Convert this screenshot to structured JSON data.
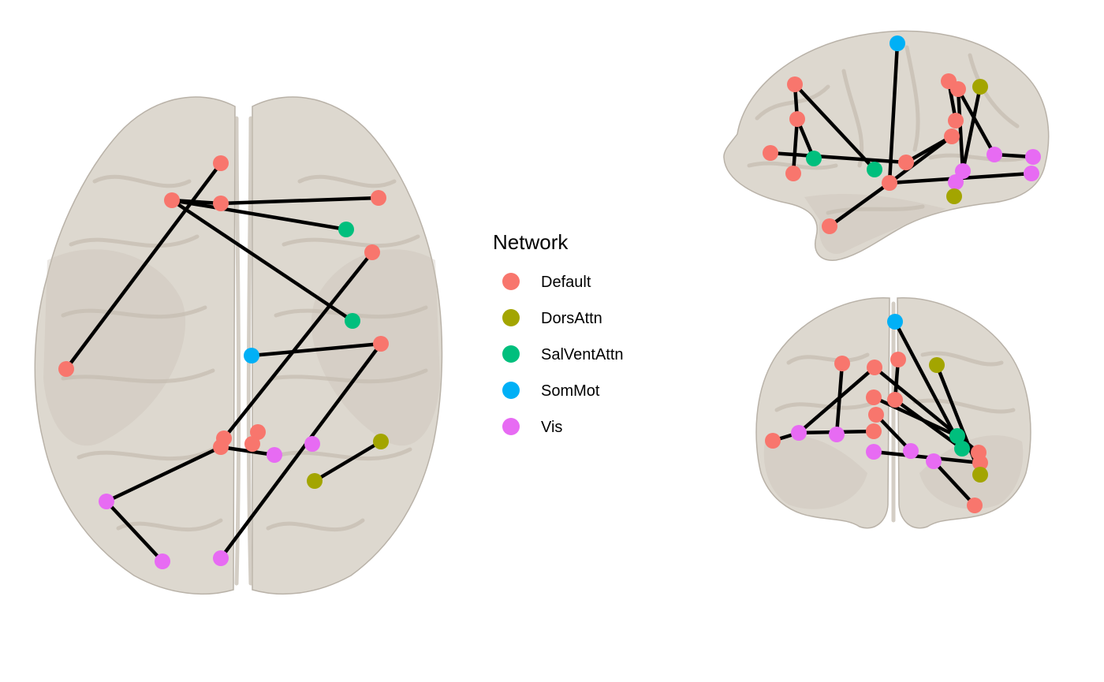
{
  "legend": {
    "title": "Network",
    "items": [
      {
        "label": "Default",
        "color": "#F8766D"
      },
      {
        "label": "DorsAttn",
        "color": "#A3A500"
      },
      {
        "label": "SalVentAttn",
        "color": "#00BF7D"
      },
      {
        "label": "SomMot",
        "color": "#00B0F6"
      },
      {
        "label": "Vis",
        "color": "#E76BF3"
      }
    ]
  },
  "colors": {
    "edge": "#000000",
    "brain_fill": "#ddd8cf",
    "background": "#ffffff"
  }
}
